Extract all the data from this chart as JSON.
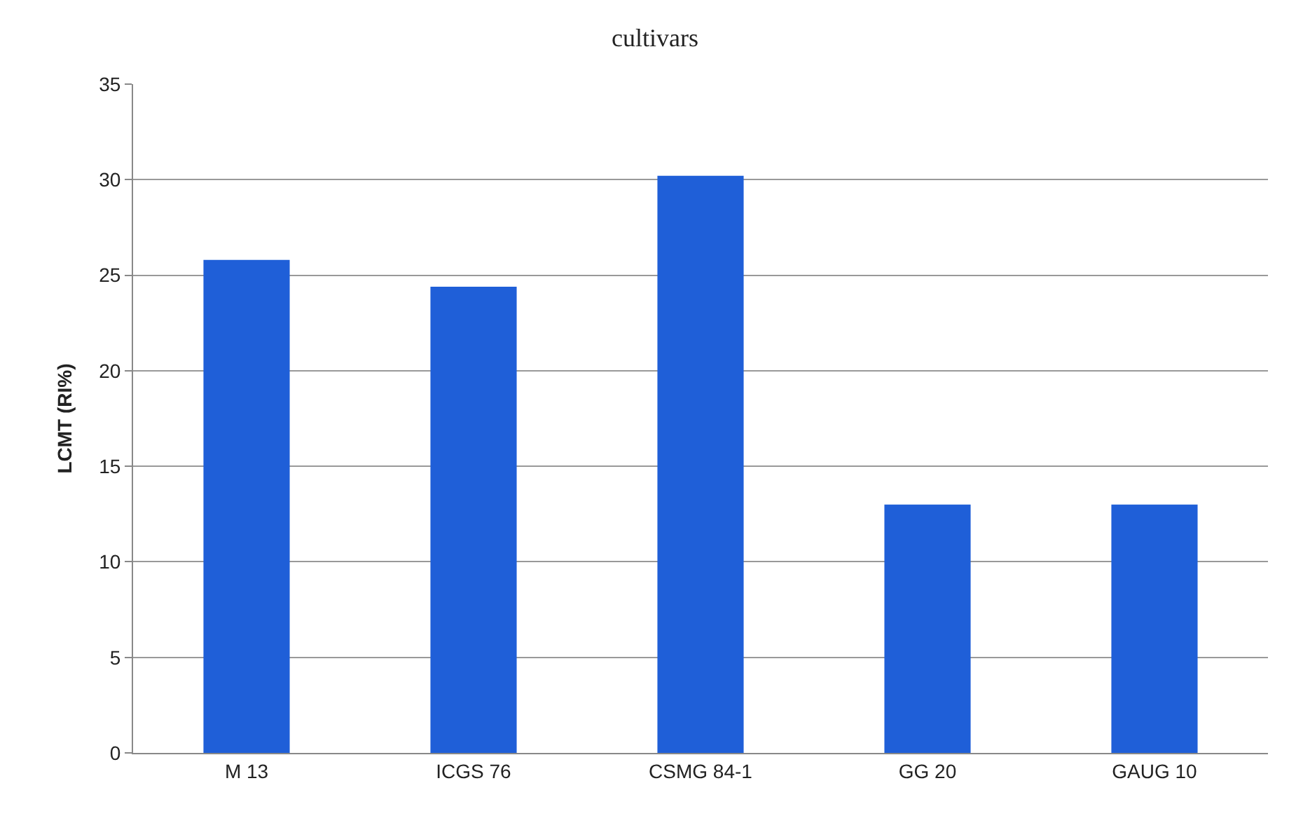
{
  "chart_data": {
    "type": "bar",
    "title": "cultivars",
    "ylabel": "LCMT (RI%)",
    "categories": [
      "M 13",
      "ICGS 76",
      "CSMG 84-1",
      "GG 20",
      "GAUG 10"
    ],
    "values": [
      25.8,
      24.4,
      30.2,
      13,
      13
    ],
    "color": "#1f5fd8",
    "ylim": [
      0,
      35
    ],
    "yticks": [
      0,
      5,
      10,
      15,
      20,
      25,
      30,
      35
    ],
    "grid": "y"
  }
}
